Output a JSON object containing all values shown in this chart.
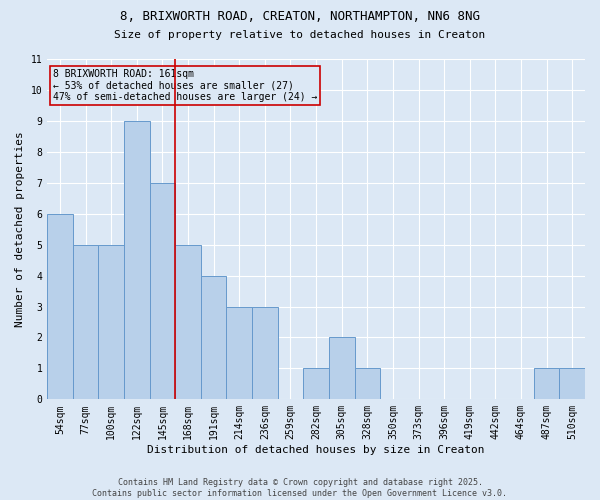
{
  "title_line1": "8, BRIXWORTH ROAD, CREATON, NORTHAMPTON, NN6 8NG",
  "title_line2": "Size of property relative to detached houses in Creaton",
  "xlabel": "Distribution of detached houses by size in Creaton",
  "ylabel": "Number of detached properties",
  "footer": "Contains HM Land Registry data © Crown copyright and database right 2025.\nContains public sector information licensed under the Open Government Licence v3.0.",
  "categories": [
    "54sqm",
    "77sqm",
    "100sqm",
    "122sqm",
    "145sqm",
    "168sqm",
    "191sqm",
    "214sqm",
    "236sqm",
    "259sqm",
    "282sqm",
    "305sqm",
    "328sqm",
    "350sqm",
    "373sqm",
    "396sqm",
    "419sqm",
    "442sqm",
    "464sqm",
    "487sqm",
    "510sqm"
  ],
  "values": [
    6,
    5,
    5,
    9,
    7,
    5,
    4,
    3,
    3,
    0,
    1,
    2,
    1,
    0,
    0,
    0,
    0,
    0,
    0,
    1,
    1
  ],
  "bar_color": "#b8d0ea",
  "bar_edge_color": "#6699cc",
  "background_color": "#dce8f5",
  "grid_color": "#ffffff",
  "vline_x": 4.5,
  "vline_color": "#cc0000",
  "annotation_box_text": "8 BRIXWORTH ROAD: 161sqm\n← 53% of detached houses are smaller (27)\n47% of semi-detached houses are larger (24) →",
  "annotation_box_color": "#cc0000",
  "ylim": [
    0,
    11
  ],
  "yticks": [
    0,
    1,
    2,
    3,
    4,
    5,
    6,
    7,
    8,
    9,
    10,
    11
  ],
  "title_fontsize": 9,
  "subtitle_fontsize": 8,
  "xlabel_fontsize": 8,
  "ylabel_fontsize": 8,
  "tick_fontsize": 7,
  "footer_fontsize": 6,
  "ann_fontsize": 7
}
